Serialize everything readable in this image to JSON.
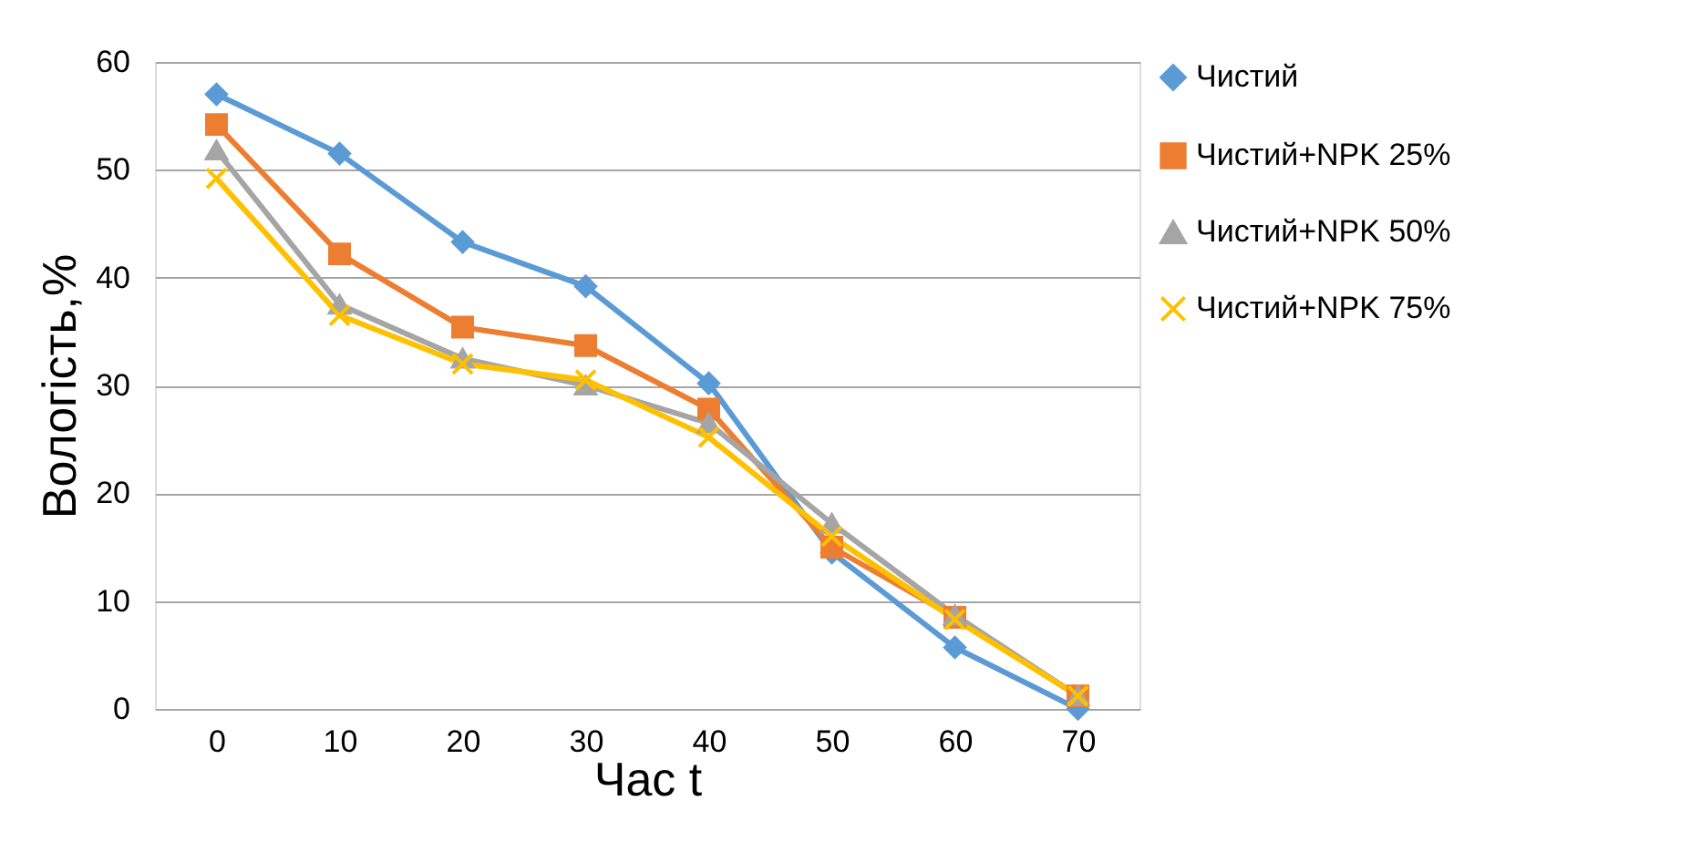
{
  "chart_data": {
    "type": "line",
    "xlabel": "Час t",
    "ylabel": "Вологість,%",
    "categories": [
      "0",
      "10",
      "20",
      "30",
      "40",
      "50",
      "60",
      "70"
    ],
    "series": [
      {
        "name": "Чистий",
        "color": "#5b9bd5",
        "marker": "diamond",
        "values": [
          57,
          51.5,
          43.3,
          39.2,
          30.2,
          14.5,
          5.7,
          0
        ]
      },
      {
        "name": "Чистий+NPK 25%",
        "color": "#ed7d31",
        "marker": "square",
        "values": [
          54.2,
          42.2,
          35.4,
          33.7,
          27.8,
          15,
          8.5,
          1.2
        ]
      },
      {
        "name": "Чистий+NPK 50%",
        "color": "#a5a5a5",
        "marker": "triangle",
        "values": [
          51.8,
          37.5,
          32.5,
          30,
          26.5,
          17.2,
          8.7,
          1.2
        ]
      },
      {
        "name": "Чистий+NPK 75%",
        "color": "#ffc000",
        "marker": "cross",
        "values": [
          49.2,
          36.5,
          32,
          30.5,
          25.2,
          16,
          8.3,
          1.2
        ]
      }
    ],
    "ylim": [
      0,
      60
    ],
    "yticks": [
      0,
      10,
      20,
      30,
      40,
      50,
      60
    ],
    "grid": "y",
    "legend": "right"
  }
}
